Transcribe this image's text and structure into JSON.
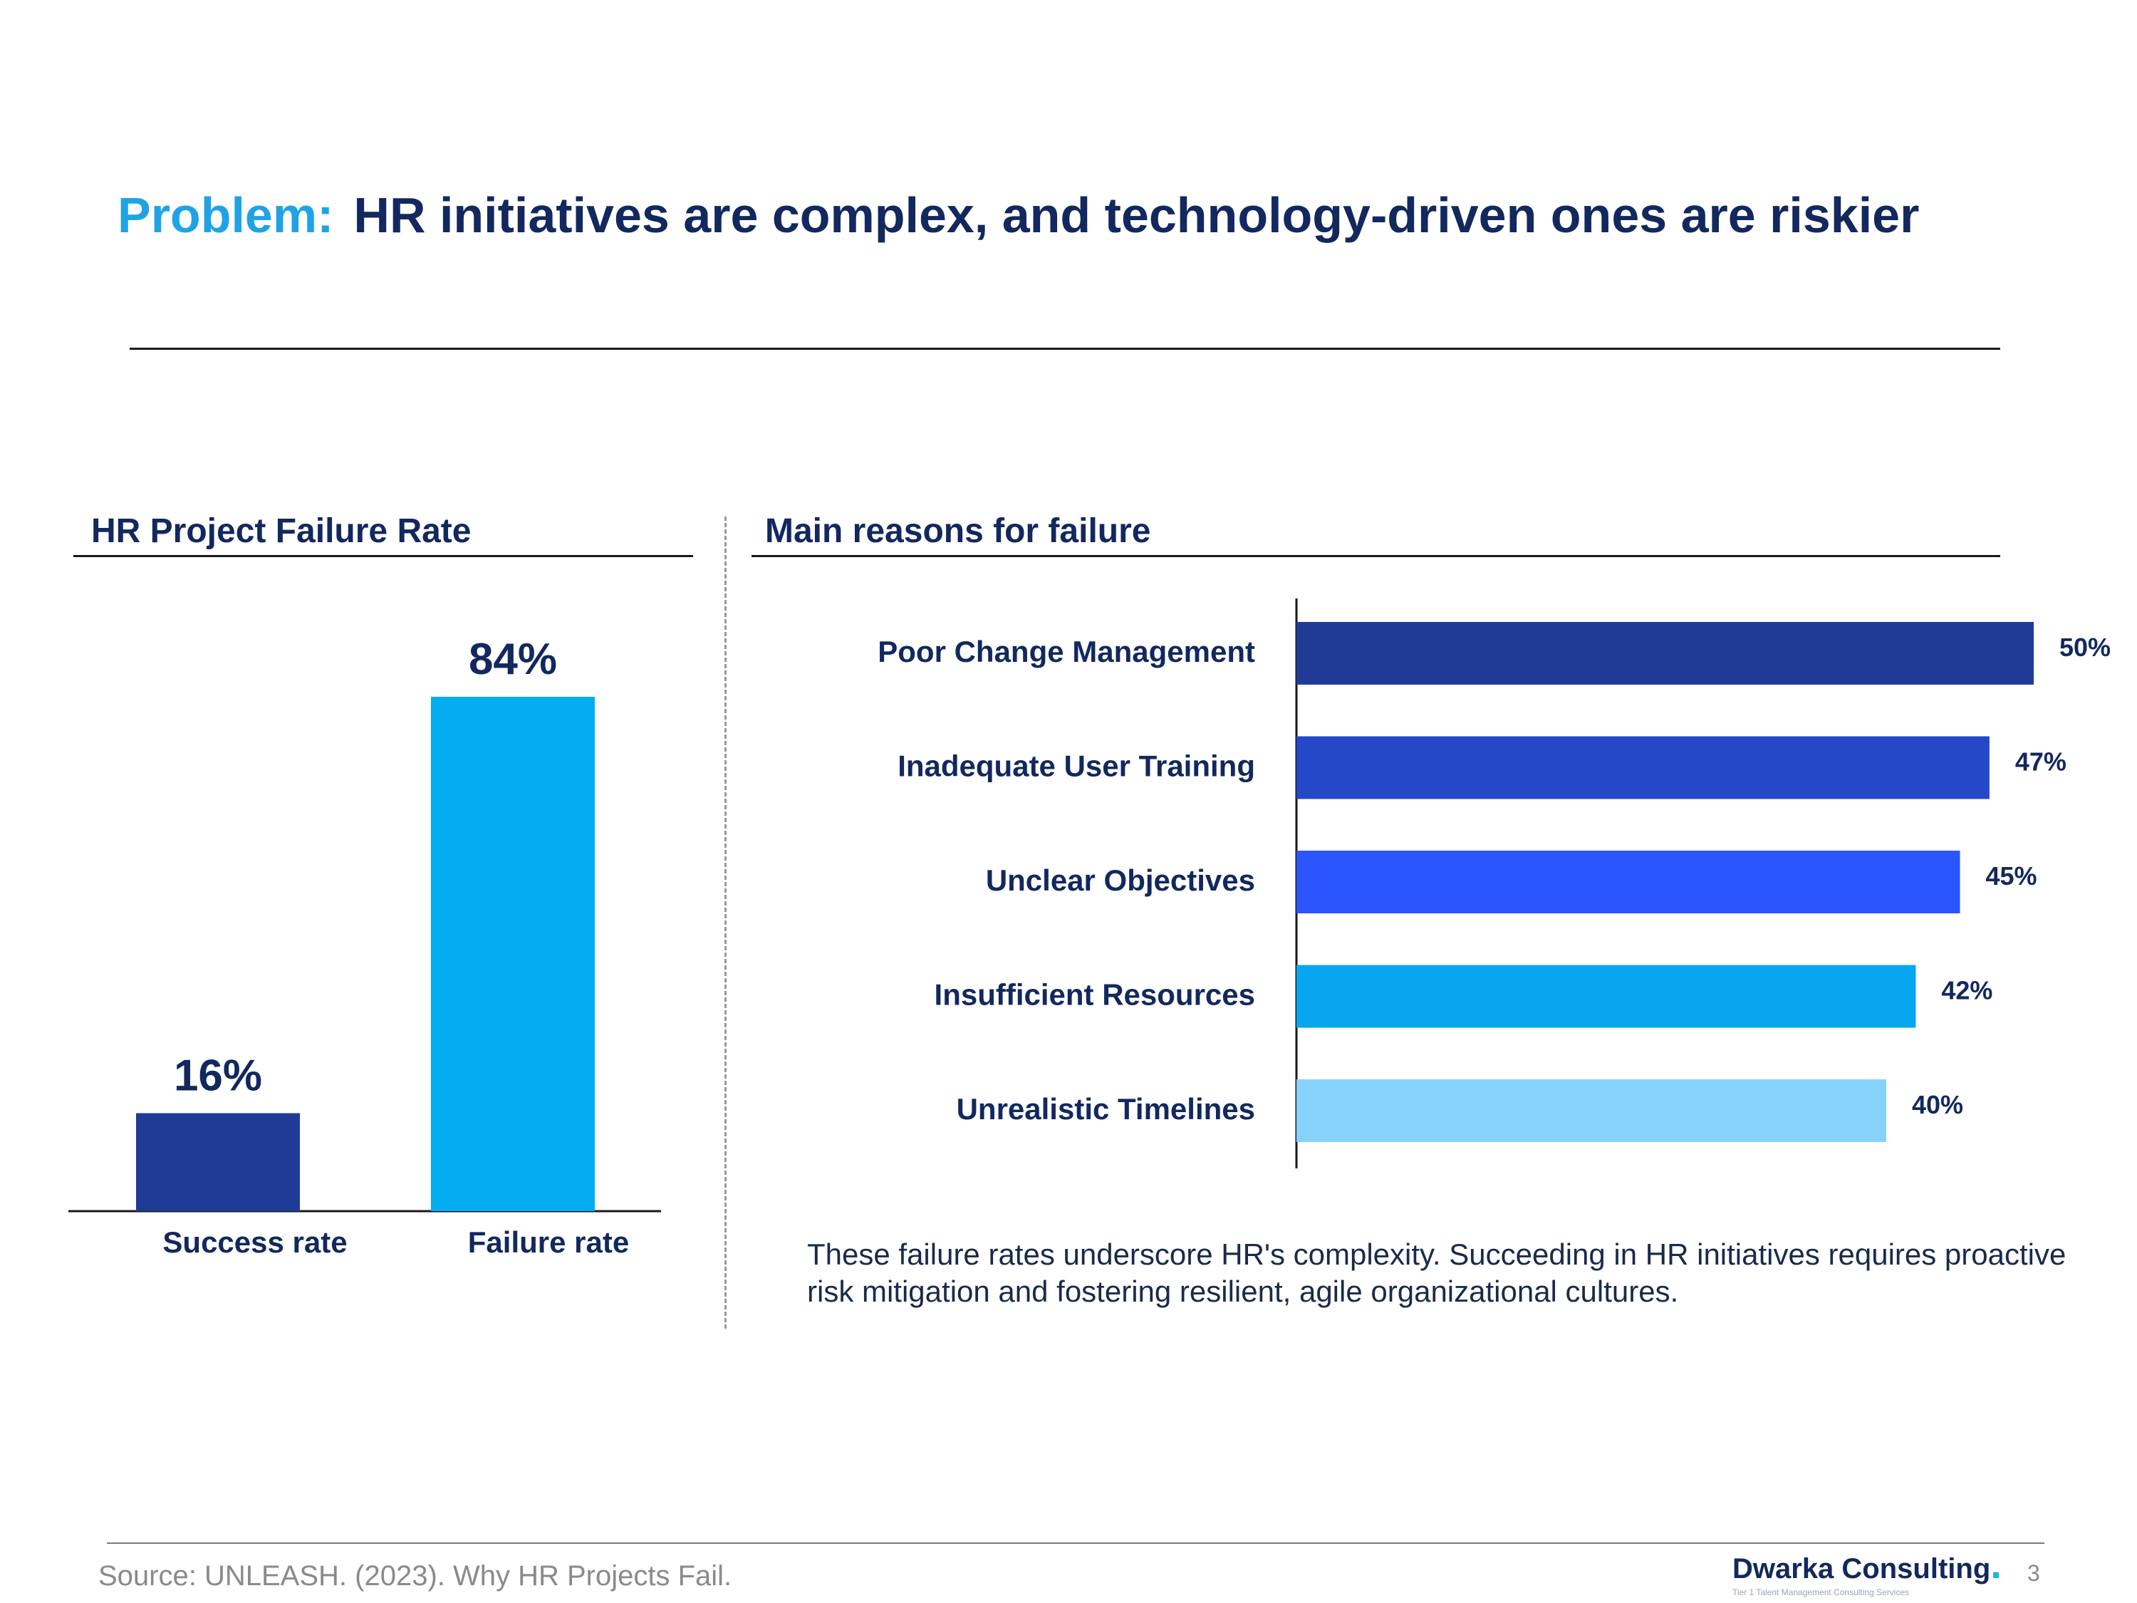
{
  "title": {
    "prefix": "Problem:",
    "text": "HR initiatives are complex, and technology-driven ones are riskier"
  },
  "left_panel": {
    "heading": "HR Project Failure Rate"
  },
  "right_panel": {
    "heading": "Main reasons for failure",
    "note": "These failure rates underscore HR's complexity. Succeeding in HR initiatives requires proactive risk mitigation and fostering resilient, agile organizational cultures."
  },
  "footer": {
    "source": "Source: UNLEASH. (2023). Why HR Projects Fail.",
    "brand": "Dwarka Consulting",
    "tagline": "Tier 1 Talent Management Consulting Services",
    "page": "3"
  },
  "colors": {
    "title_accent": "#1fa3e6",
    "navy": "#12285e"
  },
  "chart_data": [
    {
      "type": "bar",
      "title": "HR Project Failure Rate",
      "categories": [
        "Success rate",
        "Failure rate"
      ],
      "values": [
        16,
        84
      ],
      "data_labels": [
        "16%",
        "84%"
      ],
      "colors": [
        "#1f3b96",
        "#04acf2"
      ],
      "ylim": [
        0,
        100
      ],
      "grid": false,
      "legend": "none"
    },
    {
      "type": "bar",
      "orientation": "horizontal",
      "title": "Main reasons for failure",
      "categories": [
        "Poor Change Management",
        "Inadequate User Training",
        "Unclear Objectives",
        "Insufficient Resources",
        "Unrealistic Timelines"
      ],
      "values": [
        50,
        47,
        45,
        42,
        40
      ],
      "data_labels": [
        "50%",
        "47%",
        "45%",
        "42%",
        "40%"
      ],
      "colors": [
        "#1f3b96",
        "#2548c9",
        "#2a55ff",
        "#07a6ee",
        "#87d2fc"
      ],
      "grid": false,
      "legend": "none"
    }
  ]
}
